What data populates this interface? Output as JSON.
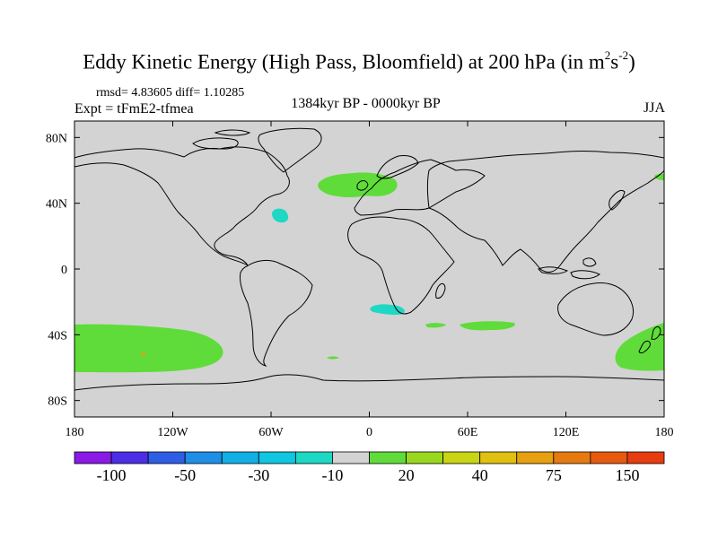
{
  "title": {
    "main": "Eddy Kinetic Energy (High Pass, Bloomfield) at 200 hPa (in m",
    "sup1": "2",
    "mid": "s",
    "sup2": "-2",
    "end": ")"
  },
  "stats": "rmsd= 4.83605 diff= 1.10285",
  "expt": "Expt = tFmE2-tfmea",
  "period": "1384kyr BP - 0000kyr BP",
  "season": "JJA",
  "map": {
    "lat_labels": [
      "80N",
      "40N",
      "0",
      "40S",
      "80S"
    ],
    "lon_labels": [
      "180",
      "120W",
      "60W",
      "0",
      "60E",
      "120E",
      "180"
    ],
    "lat_values": [
      80,
      40,
      0,
      -40,
      -80
    ],
    "lon_values": [
      -180,
      -120,
      -60,
      0,
      60,
      120,
      180
    ],
    "background_color": "#d3d3d3",
    "anomaly_regions": [
      {
        "name": "north-atlantic-positive",
        "level": "10-20",
        "color": "#5fdc3a"
      },
      {
        "name": "northwest-atlantic-negative",
        "level": "-10",
        "color": "#1ed8c4"
      },
      {
        "name": "south-atlantic-negative",
        "level": "-10",
        "color": "#1ed8c4"
      },
      {
        "name": "south-indian-positive",
        "level": "10-20",
        "color": "#5fdc3a"
      },
      {
        "name": "south-pacific-positive",
        "level": "10-20",
        "color": "#5fdc3a"
      },
      {
        "name": "new-zealand-positive",
        "level": "10-20",
        "color": "#5fdc3a"
      },
      {
        "name": "north-pacific-positive",
        "level": "10-20",
        "color": "#5fdc3a"
      }
    ]
  },
  "colorbar": {
    "colors": [
      "#8a1ae6",
      "#4b2ee6",
      "#2f5ee6",
      "#1f8ee6",
      "#12aee6",
      "#10c6e0",
      "#1ed8c4",
      "#d3d3d3",
      "#5fdc3a",
      "#9ad820",
      "#c8d414",
      "#e0c010",
      "#e6a010",
      "#e67a10",
      "#e65a10",
      "#e63c10"
    ],
    "labels": [
      "-100",
      "-50",
      "-30",
      "-10",
      "20",
      "40",
      "75",
      "150"
    ]
  }
}
